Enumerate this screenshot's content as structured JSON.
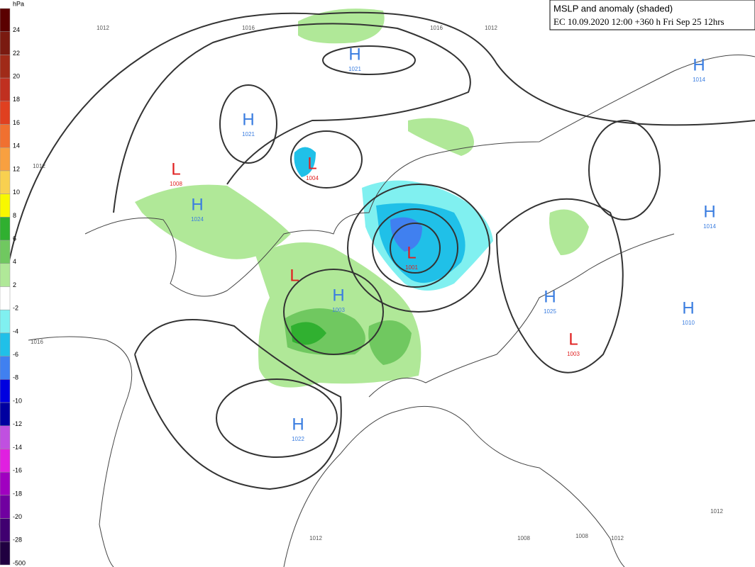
{
  "header": {
    "title": "MSLP and anomaly (shaded)",
    "subtitle": "EC 10.09.2020 12:00 +360 h Fri Sep 25 12hrs"
  },
  "colorbar": {
    "unit": "hPa",
    "bins": [
      {
        "label": "24",
        "color": "#5a0000"
      },
      {
        "label": "22",
        "color": "#7a1a10"
      },
      {
        "label": "20",
        "color": "#a02a18"
      },
      {
        "label": "18",
        "color": "#c03020"
      },
      {
        "label": "16",
        "color": "#e04020"
      },
      {
        "label": "14",
        "color": "#f07030"
      },
      {
        "label": "12",
        "color": "#f8a040"
      },
      {
        "label": "10",
        "color": "#f8d050"
      },
      {
        "label": "8",
        "color": "#f8f800"
      },
      {
        "label": "6",
        "color": "#30b030"
      },
      {
        "label": "4",
        "color": "#70c860"
      },
      {
        "label": "2",
        "color": "#b0e898"
      },
      {
        "label": "-2",
        "color": "#ffffff"
      },
      {
        "label": "-4",
        "color": "#80f0f0"
      },
      {
        "label": "-6",
        "color": "#20c0e8"
      },
      {
        "label": "-8",
        "color": "#4080f0"
      },
      {
        "label": "-10",
        "color": "#0000e0"
      },
      {
        "label": "-12",
        "color": "#0000a0"
      },
      {
        "label": "-14",
        "color": "#c050e0"
      },
      {
        "label": "-16",
        "color": "#e020e0"
      },
      {
        "label": "-18",
        "color": "#a000c0"
      },
      {
        "label": "-20",
        "color": "#7000a0"
      },
      {
        "label": "-28",
        "color": "#400070"
      },
      {
        "label": "-500",
        "color": "#200040"
      }
    ]
  },
  "centers": [
    {
      "kind": "H",
      "value": "1021"
    },
    {
      "kind": "H",
      "value": "1021"
    },
    {
      "kind": "L",
      "value": "1008"
    },
    {
      "kind": "L",
      "value": "1004"
    },
    {
      "kind": "H",
      "value": "1024"
    },
    {
      "kind": "H",
      "value": "1014"
    },
    {
      "kind": "H",
      "value": "1014"
    },
    {
      "kind": "L",
      "value": "1001"
    },
    {
      "kind": "L"
    },
    {
      "kind": "H",
      "value": "1003"
    },
    {
      "kind": "H",
      "value": "1025"
    },
    {
      "kind": "H",
      "value": "1010"
    },
    {
      "kind": "L",
      "value": "1003"
    },
    {
      "kind": "H",
      "value": "1022"
    }
  ],
  "isobar_labels": [
    "1012",
    "1016",
    "1016",
    "1012",
    "1012",
    "1012",
    "1012",
    "1008",
    "1008",
    "1012",
    "1016"
  ]
}
